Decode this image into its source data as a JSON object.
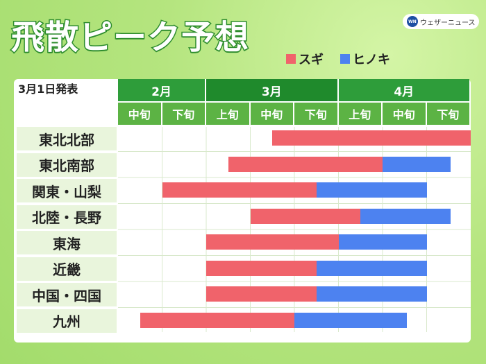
{
  "title": "飛散ピーク予想",
  "brand": {
    "logo_text": "WN",
    "name": "ウェザーニュース"
  },
  "announce_date": "3月1日発表",
  "legend": [
    {
      "label": "スギ",
      "color": "#f0636b"
    },
    {
      "label": "ヒノキ",
      "color": "#4d82f0"
    }
  ],
  "chart_data": {
    "type": "bar",
    "orientation": "horizontal-range",
    "months": [
      {
        "label": "2月",
        "dekads": [
          "中旬",
          "下旬"
        ]
      },
      {
        "label": "3月",
        "dekads": [
          "上旬",
          "中旬",
          "下旬"
        ]
      },
      {
        "label": "4月",
        "dekads": [
          "上旬",
          "中旬",
          "下旬"
        ]
      }
    ],
    "x_unit": "dekad index (0 = 2月中旬 start, 8 = 4月下旬 end)",
    "xlim": [
      0,
      8
    ],
    "regions": [
      {
        "name": "東北北部",
        "sugi": [
          3.5,
          8.0
        ],
        "hinoki": null
      },
      {
        "name": "東北南部",
        "sugi": [
          2.5,
          6.0
        ],
        "hinoki": [
          6.0,
          7.55
        ]
      },
      {
        "name": "関東・山梨",
        "sugi": [
          1.0,
          4.5
        ],
        "hinoki": [
          4.5,
          7.0
        ]
      },
      {
        "name": "北陸・長野",
        "sugi": [
          3.0,
          5.5
        ],
        "hinoki": [
          5.5,
          7.55
        ]
      },
      {
        "name": "東海",
        "sugi": [
          2.0,
          5.0
        ],
        "hinoki": [
          5.0,
          7.0
        ]
      },
      {
        "name": "近畿",
        "sugi": [
          2.0,
          4.5
        ],
        "hinoki": [
          4.5,
          7.0
        ]
      },
      {
        "name": "中国・四国",
        "sugi": [
          2.0,
          4.5
        ],
        "hinoki": [
          4.5,
          7.0
        ]
      },
      {
        "name": "九州",
        "sugi": [
          0.5,
          4.0
        ],
        "hinoki": [
          4.0,
          6.55
        ]
      }
    ],
    "colors": {
      "sugi": "#f0636b",
      "hinoki": "#4d82f0",
      "month_header": "#2e9d3a",
      "dekad_header": "#5cb344"
    }
  }
}
